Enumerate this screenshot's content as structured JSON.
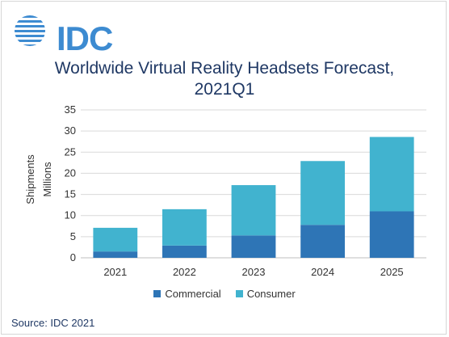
{
  "logo": {
    "text": "IDC"
  },
  "chart_data": {
    "type": "bar",
    "stacked": true,
    "title": "Worldwide Virtual Reality Headsets Forecast, 2021Q1",
    "title_lines": [
      "Worldwide Virtual Reality Headsets Forecast,",
      "2021Q1"
    ],
    "ylabel_lines": [
      "Shipments",
      "Millions"
    ],
    "xlabel": "",
    "categories": [
      "2021",
      "2022",
      "2023",
      "2024",
      "2025"
    ],
    "ylim": [
      0,
      35
    ],
    "yticks": [
      "0",
      "5",
      "10",
      "15",
      "20",
      "25",
      "30",
      "35"
    ],
    "grid": true,
    "legend_position": "bottom",
    "series": [
      {
        "name": "Commercial",
        "color": "#2e75b6",
        "values": [
          1.5,
          2.9,
          5.3,
          7.8,
          11.0
        ]
      },
      {
        "name": "Consumer",
        "color": "#41b3cf",
        "values": [
          5.6,
          8.6,
          11.9,
          15.1,
          17.6
        ]
      }
    ]
  },
  "source": "Source: IDC 2021"
}
